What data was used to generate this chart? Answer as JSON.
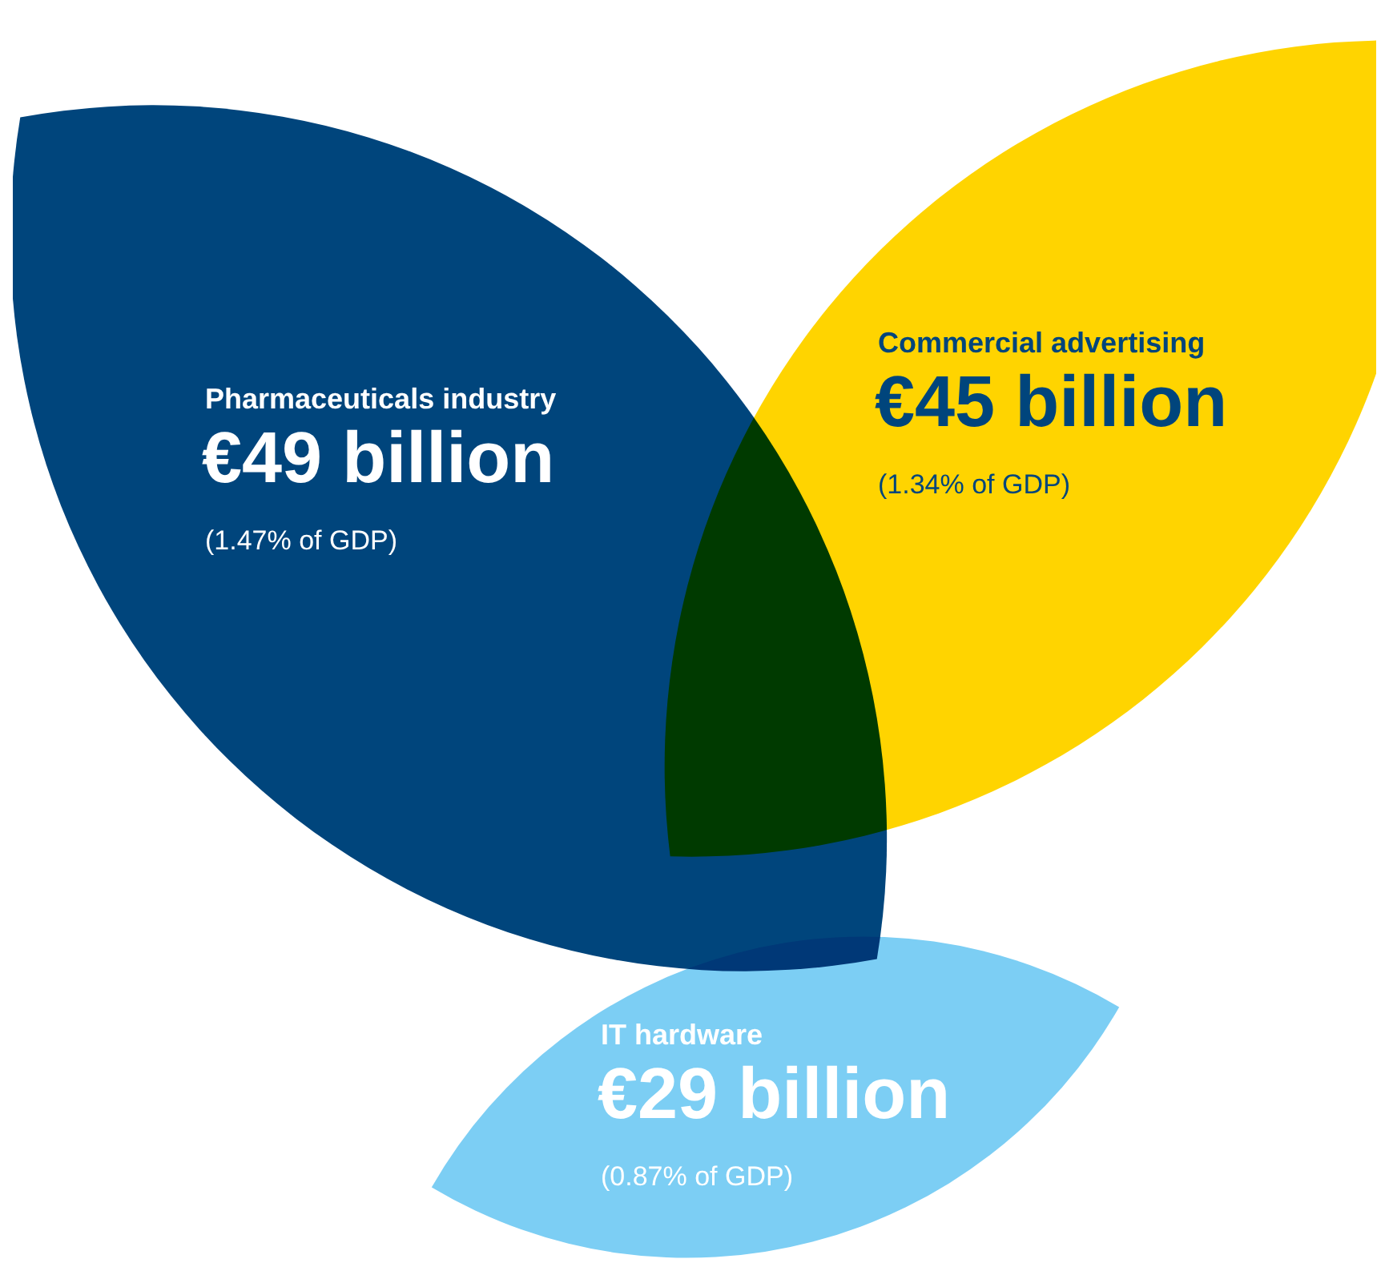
{
  "chart_data": {
    "type": "other",
    "categories": [
      "Pharmaceuticals industry",
      "Commercial advertising",
      "IT hardware"
    ],
    "values": [
      49,
      45,
      29
    ],
    "value_labels": [
      "€49 billion",
      "€45 billion",
      "€29 billion"
    ],
    "colors": [
      "#00457c",
      "#ffd400",
      "#7ccef4"
    ],
    "annotations": [
      "(1.47% of GDP)",
      "(1.34% of GDP)",
      "(0.87% of GDP)"
    ]
  }
}
